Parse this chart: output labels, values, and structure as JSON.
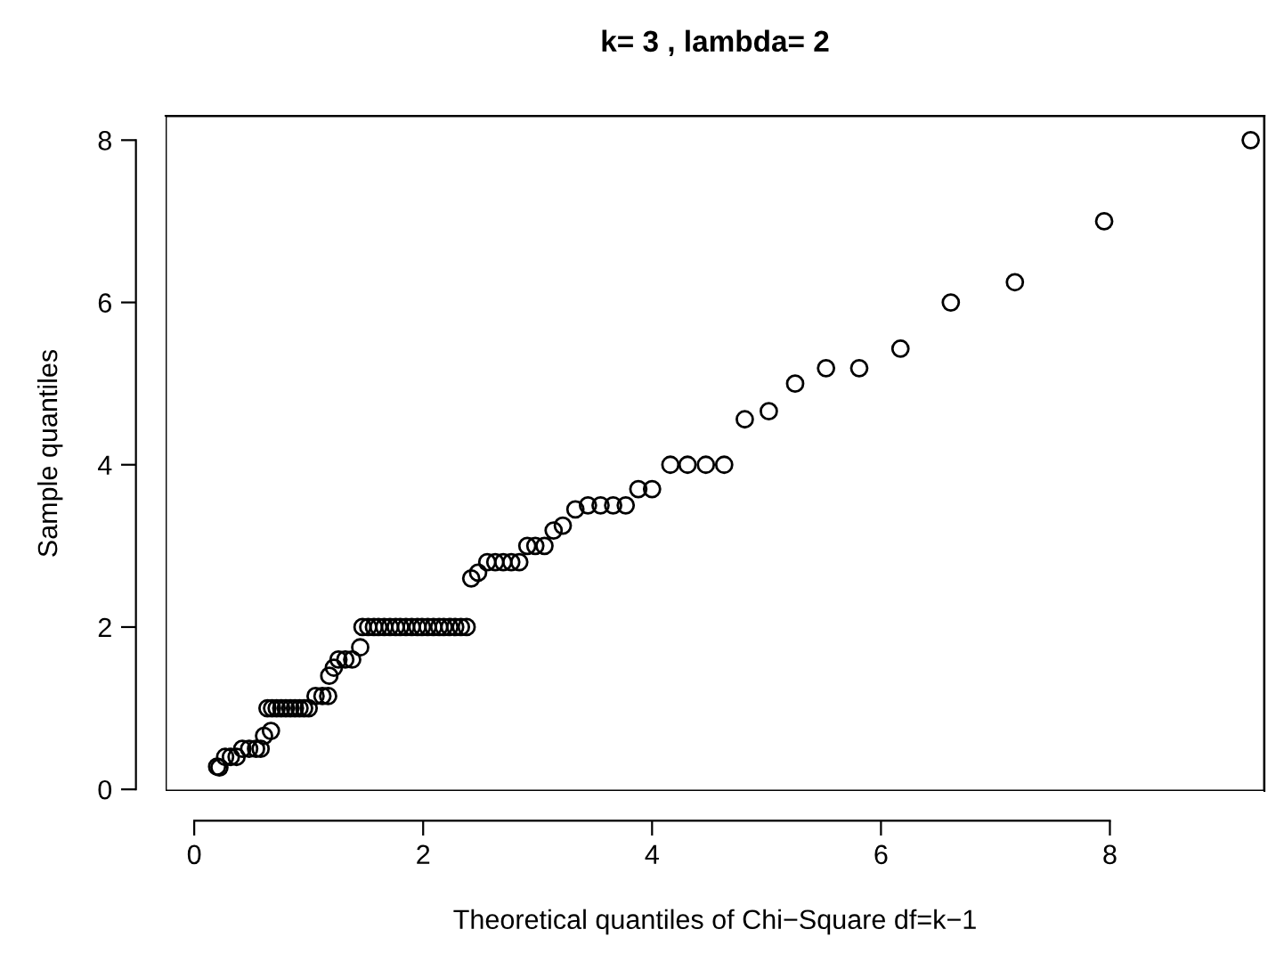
{
  "chart_data": {
    "type": "scatter",
    "title": "k= 3 , lambda= 2",
    "xlabel": "Theoretical quantiles of Chi−Square df=k−1",
    "ylabel": "Sample quantiles",
    "xlim": [
      -0.25,
      9.35
    ],
    "ylim": [
      -0.02,
      8.3
    ],
    "xticks": [
      0,
      2,
      4,
      6,
      8
    ],
    "yticks": [
      0,
      2,
      4,
      6,
      8
    ],
    "grid": false,
    "marker": "circle",
    "series": [
      {
        "color": "#000000",
        "x": [
          0.2,
          0.22,
          0.27,
          0.32,
          0.37,
          0.42,
          0.48,
          0.54,
          0.58,
          0.61,
          0.67,
          0.64,
          0.68,
          0.72,
          0.76,
          0.8,
          0.84,
          0.88,
          0.92,
          0.96,
          1.0,
          1.06,
          1.12,
          1.17,
          1.18,
          1.22,
          1.26,
          1.32,
          1.38,
          1.45,
          1.47,
          1.52,
          1.57,
          1.61,
          1.66,
          1.71,
          1.76,
          1.8,
          1.85,
          1.9,
          1.95,
          1.99,
          2.04,
          2.09,
          2.14,
          2.18,
          2.23,
          2.28,
          2.33,
          2.38,
          2.42,
          2.48,
          2.56,
          2.63,
          2.7,
          2.77,
          2.84,
          2.91,
          2.98,
          3.06,
          3.14,
          3.22,
          3.33,
          3.44,
          3.55,
          3.66,
          3.77,
          3.88,
          4.0,
          4.16,
          4.31,
          4.47,
          4.63,
          4.81,
          5.02,
          5.25,
          5.52,
          5.81,
          6.17,
          6.61,
          7.17,
          7.95,
          9.23
        ],
        "values": [
          0.28,
          0.27,
          0.4,
          0.4,
          0.4,
          0.5,
          0.5,
          0.5,
          0.5,
          0.66,
          0.72,
          1.0,
          1.0,
          1.0,
          1.0,
          1.0,
          1.0,
          1.0,
          1.0,
          1.0,
          1.0,
          1.15,
          1.15,
          1.15,
          1.4,
          1.5,
          1.6,
          1.6,
          1.6,
          1.75,
          2.0,
          2.0,
          2.0,
          2.0,
          2.0,
          2.0,
          2.0,
          2.0,
          2.0,
          2.0,
          2.0,
          2.0,
          2.0,
          2.0,
          2.0,
          2.0,
          2.0,
          2.0,
          2.0,
          2.0,
          2.6,
          2.67,
          2.8,
          2.8,
          2.8,
          2.8,
          2.8,
          3.0,
          3.0,
          3.0,
          3.19,
          3.25,
          3.45,
          3.5,
          3.5,
          3.5,
          3.5,
          3.7,
          3.7,
          4.0,
          4.0,
          4.0,
          4.0,
          4.56,
          4.66,
          5.0,
          5.19,
          5.19,
          5.43,
          6.0,
          6.25,
          7.0,
          8.0
        ]
      }
    ]
  }
}
